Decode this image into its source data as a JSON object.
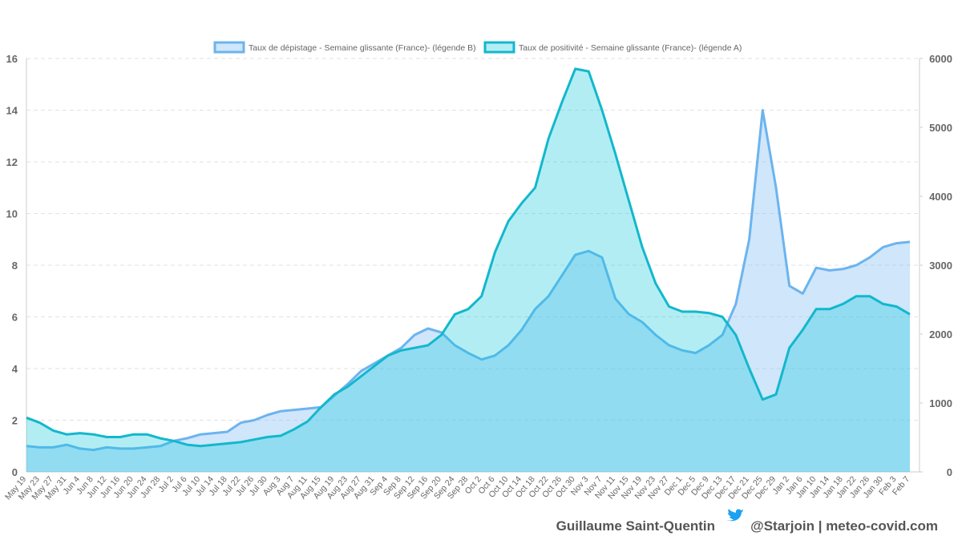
{
  "chart_data": {
    "type": "line",
    "categories": [
      "May 19",
      "May 23",
      "May 27",
      "May 31",
      "Jun 4",
      "Jun 8",
      "Jun 12",
      "Jun 16",
      "Jun 20",
      "Jun 24",
      "Jun 28",
      "Jul 2",
      "Jul 6",
      "Jul 10",
      "Jul 14",
      "Jul 18",
      "Jul 22",
      "Jul 26",
      "Jul 30",
      "Aug 3",
      "Aug 7",
      "Aug 11",
      "Aug 15",
      "Aug 19",
      "Aug 23",
      "Aug 27",
      "Aug 31",
      "Sep 4",
      "Sep 8",
      "Sep 12",
      "Sep 16",
      "Sep 20",
      "Sep 24",
      "Sep 28",
      "Oct 2",
      "Oct 6",
      "Oct 10",
      "Oct 14",
      "Oct 18",
      "Oct 22",
      "Oct 26",
      "Oct 30",
      "Nov 3",
      "Nov 7",
      "Nov 11",
      "Nov 15",
      "Nov 19",
      "Nov 23",
      "Nov 27",
      "Dec 1",
      "Dec 5",
      "Dec 9",
      "Dec 13",
      "Dec 17",
      "Dec 21",
      "Dec 25",
      "Dec 29",
      "Jan 2",
      "Jan 6",
      "Jan 10",
      "Jan 14",
      "Jan 18",
      "Jan 22",
      "Jan 26",
      "Jan 30",
      "Feb 3",
      "Feb 7"
    ],
    "series": [
      {
        "name": "Taux de dépistage - Semaine glissante (France)- (légende B)",
        "color": "#6cb4ee",
        "axis": "y2",
        "values": [
          375,
          356,
          356,
          394,
          338,
          319,
          356,
          338,
          338,
          356,
          375,
          450,
          488,
          544,
          563,
          581,
          713,
          750,
          825,
          881,
          900,
          919,
          938,
          1106,
          1275,
          1463,
          1575,
          1688,
          1800,
          1988,
          2081,
          2025,
          1838,
          1725,
          1631,
          1688,
          1838,
          2063,
          2363,
          2550,
          2850,
          3150,
          3206,
          3113,
          2513,
          2288,
          2175,
          1988,
          1838,
          1763,
          1725,
          1838,
          1988,
          2438,
          3375,
          5250,
          4125,
          2700,
          2588,
          2963,
          2925,
          2944,
          3000,
          3113,
          3263,
          3319,
          3338
        ]
      },
      {
        "name": "Taux de positivité - Semaine glissante (France)- (légende A)",
        "color": "#12b8cc",
        "values": [
          2.1,
          1.9,
          1.6,
          1.45,
          1.5,
          1.45,
          1.35,
          1.35,
          1.45,
          1.45,
          1.3,
          1.2,
          1.05,
          1.0,
          1.05,
          1.1,
          1.15,
          1.25,
          1.35,
          1.4,
          1.65,
          1.95,
          2.5,
          3.0,
          3.3,
          3.7,
          4.1,
          4.5,
          4.7,
          4.8,
          4.9,
          5.3,
          6.1,
          6.3,
          6.8,
          8.5,
          9.7,
          10.4,
          11.0,
          12.9,
          14.3,
          15.6,
          15.5,
          14.0,
          12.3,
          10.5,
          8.7,
          7.3,
          6.4,
          6.2,
          6.2,
          6.15,
          6.0,
          5.3,
          4.0,
          2.8,
          3.0,
          4.8,
          5.5,
          6.3,
          6.3,
          6.5,
          6.8,
          6.8,
          6.5,
          6.4,
          6.1
        ]
      }
    ],
    "ylim": [
      0,
      16
    ],
    "yticks": [
      0,
      2,
      4,
      6,
      8,
      10,
      12,
      14,
      16
    ],
    "y2lim": [
      0,
      6000
    ],
    "y2ticks": [
      0,
      1000,
      2000,
      3000,
      4000,
      5000,
      6000
    ],
    "grid": true,
    "legend": "top"
  },
  "footer": {
    "author": "Guillaume Saint-Quentin",
    "handle": "@Starjoin | meteo-covid.com"
  }
}
